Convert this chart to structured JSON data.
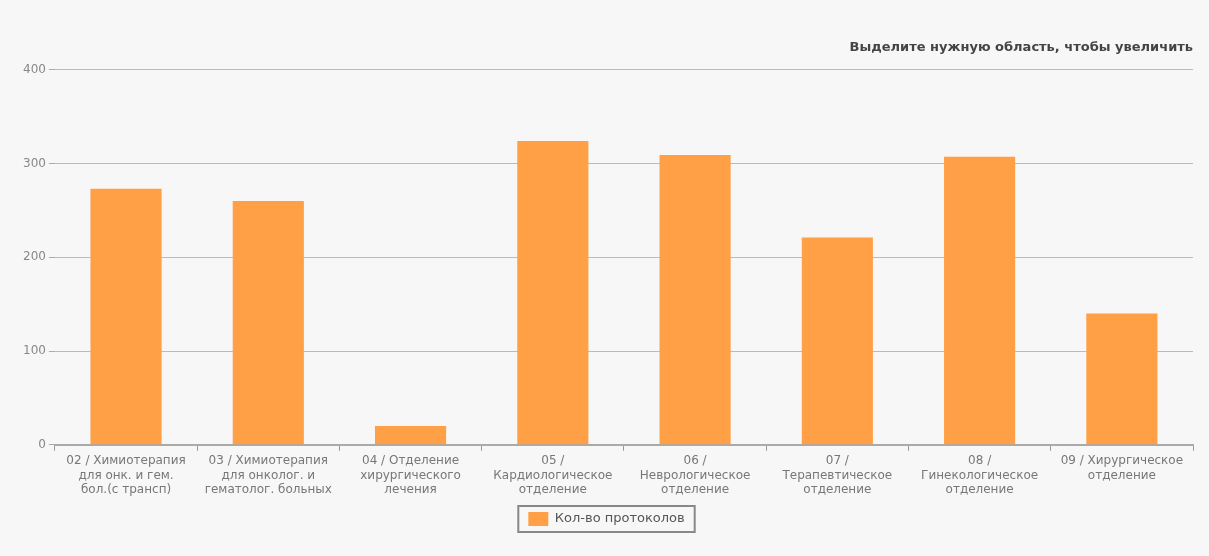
{
  "chart_data": {
    "type": "bar",
    "title": "Выделите нужную область, чтобы увеличить",
    "categories": [
      "02 / Химиотерапия для онк. и гем. бол.(с трансп)",
      "03 / Химиотерапия для онколог. и гематолог. больных",
      "04 / Отделение хирургического лечения",
      "05 / Кардиологическое отделение",
      "06 / Неврологическое отделение",
      "07 / Терапевтическое отделение",
      "08 / Гинекологическое отделение",
      "09 / Хирургическое отделение"
    ],
    "series": [
      {
        "name": "Кол-во протоколов",
        "color": "#ffa046",
        "values": [
          273,
          260,
          20,
          324,
          309,
          221,
          307,
          140
        ]
      }
    ],
    "ylim": [
      0,
      400
    ],
    "yticks": [
      0,
      100,
      200,
      300,
      400
    ],
    "grid": "y",
    "legend": "bottom"
  }
}
